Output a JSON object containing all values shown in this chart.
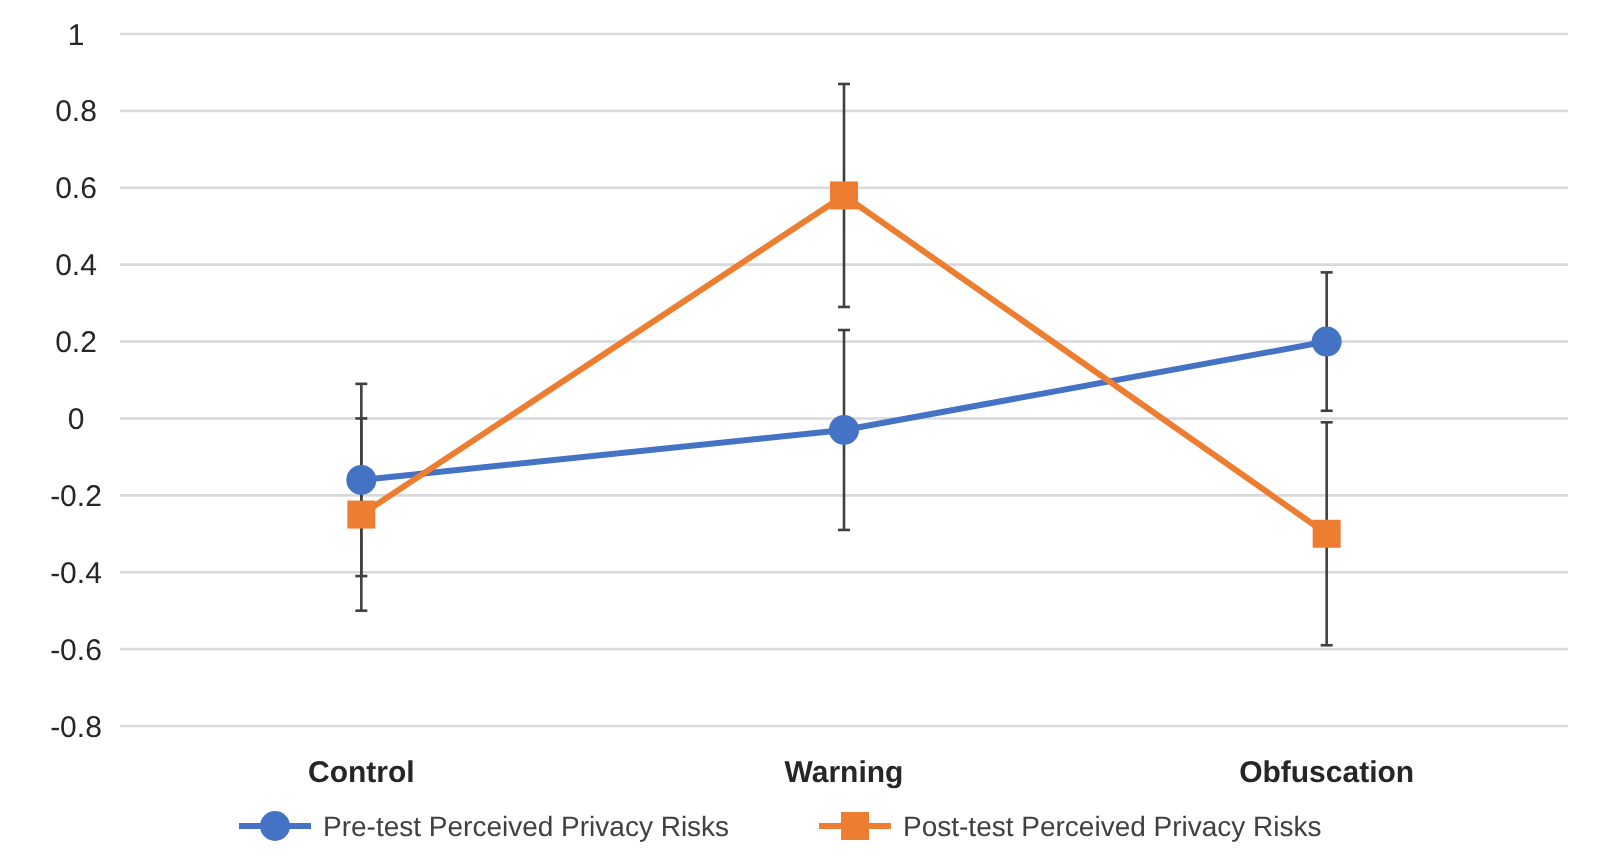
{
  "chart_data": {
    "type": "line",
    "categories": [
      "Control",
      "Warning",
      "Obfuscation"
    ],
    "series": [
      {
        "name": "Pre-test Perceived Privacy Risks",
        "color": "#4472c4",
        "marker": "circle",
        "values": [
          -0.16,
          -0.03,
          0.2
        ],
        "errors": [
          0.25,
          0.26,
          0.18
        ]
      },
      {
        "name": "Post-test Perceived Privacy Risks",
        "color": "#ed7d31",
        "marker": "square",
        "values": [
          -0.25,
          0.58,
          -0.3
        ],
        "errors": [
          0.25,
          0.29,
          0.29
        ]
      }
    ],
    "ylim": [
      -0.8,
      1
    ],
    "yticks": [
      -0.8,
      -0.6,
      -0.4,
      -0.2,
      0,
      0.2,
      0.4,
      0.6,
      0.8,
      1
    ],
    "grid": "y",
    "legend": "bottom",
    "line_style": "solid"
  }
}
